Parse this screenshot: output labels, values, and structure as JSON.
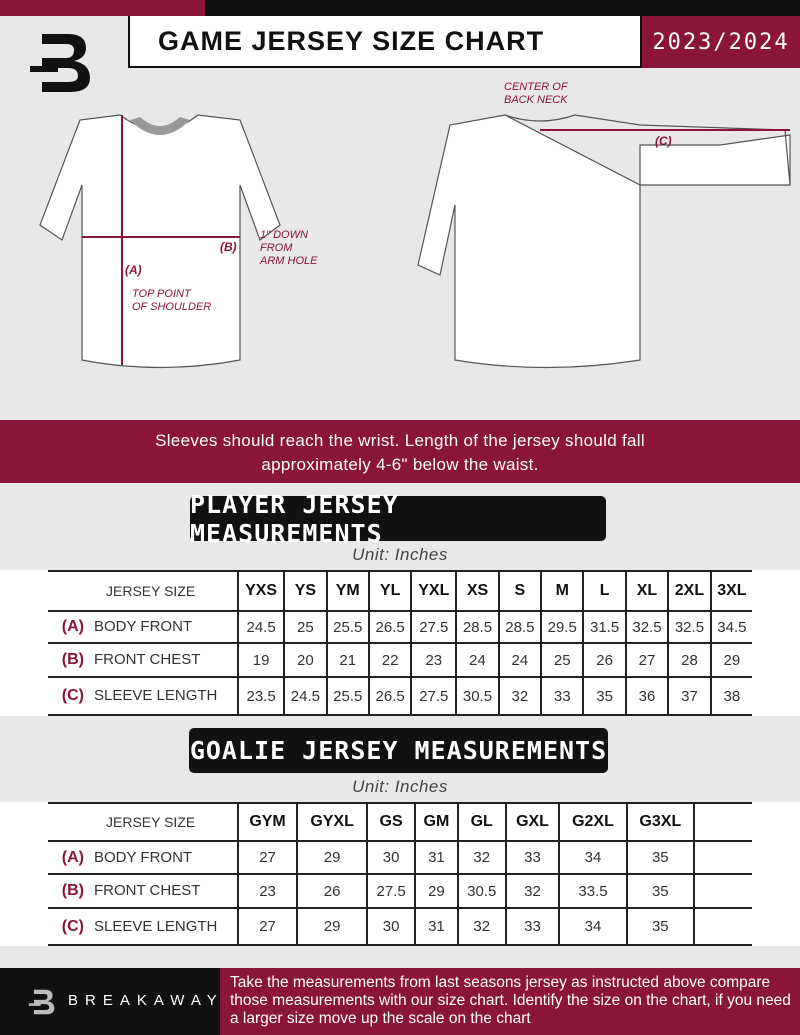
{
  "header": {
    "title": "GAME JERSEY SIZE CHART",
    "season": "2023/2024"
  },
  "diagram": {
    "label_a": "(A)",
    "label_b": "(B)",
    "label_c": "(C)",
    "note_shoulder": [
      "TOP POINT",
      "OF SHOULDER"
    ],
    "note_armhole": [
      "1\" DOWN",
      "FROM",
      "ARM HOLE"
    ],
    "note_neck": [
      "CENTER OF",
      "BACK NECK"
    ]
  },
  "banner": {
    "line1": "Sleeves should reach the wrist. Length of the jersey should fall",
    "line2": "approximately 4-6\" below the waist."
  },
  "player": {
    "title": "PLAYER JERSEY MEASUREMENTS",
    "unit": "Unit: Inches",
    "size_label": "JERSEY SIZE",
    "sizes": [
      "YXS",
      "YS",
      "YM",
      "YL",
      "YXL",
      "XS",
      "S",
      "M",
      "L",
      "XL",
      "2XL",
      "3XL"
    ],
    "rows": [
      {
        "code": "(A)",
        "name": "BODY FRONT",
        "values": [
          "24.5",
          "25",
          "25.5",
          "26.5",
          "27.5",
          "28.5",
          "28.5",
          "29.5",
          "31.5",
          "32.5",
          "32.5",
          "34.5"
        ]
      },
      {
        "code": "(B)",
        "name": "FRONT CHEST",
        "values": [
          "19",
          "20",
          "21",
          "22",
          "23",
          "24",
          "24",
          "25",
          "26",
          "27",
          "28",
          "29"
        ]
      },
      {
        "code": "(C)",
        "name": "SLEEVE LENGTH",
        "values": [
          "23.5",
          "24.5",
          "25.5",
          "26.5",
          "27.5",
          "30.5",
          "32",
          "33",
          "35",
          "36",
          "37",
          "38"
        ]
      }
    ]
  },
  "goalie": {
    "title": "GOALIE JERSEY MEASUREMENTS",
    "unit": "Unit: Inches",
    "size_label": "JERSEY SIZE",
    "sizes": [
      "GYM",
      "GYXL",
      "GS",
      "GM",
      "GL",
      "GXL",
      "G2XL",
      "G3XL",
      ""
    ],
    "rows": [
      {
        "code": "(A)",
        "name": "BODY FRONT",
        "values": [
          "27",
          "29",
          "30",
          "31",
          "32",
          "33",
          "34",
          "35",
          ""
        ]
      },
      {
        "code": "(B)",
        "name": "FRONT CHEST",
        "values": [
          "23",
          "26",
          "27.5",
          "29",
          "30.5",
          "32",
          "33.5",
          "35",
          ""
        ]
      },
      {
        "code": "(C)",
        "name": "SLEEVE LENGTH",
        "values": [
          "27",
          "29",
          "30",
          "31",
          "32",
          "33",
          "34",
          "35",
          ""
        ]
      }
    ]
  },
  "footer": {
    "brand": "BREAKAWAY",
    "text": "Take the measurements from last seasons jersey as instructed above compare those measurements  with our size chart. Identify the size on the chart, if you need a larger size move up the scale on the chart"
  },
  "colors": {
    "accent": "#8a1538",
    "dark": "#111111",
    "background": "#e8e8e8"
  }
}
